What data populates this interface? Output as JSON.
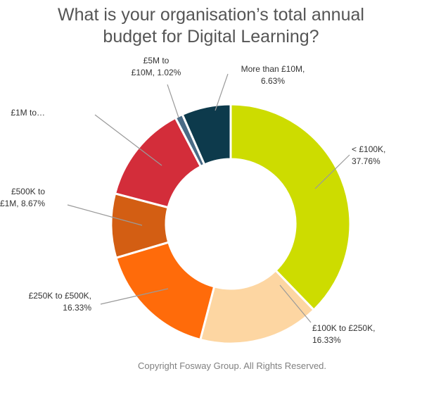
{
  "chart_data": {
    "type": "pie",
    "donut": true,
    "title_lines": [
      "What is your organisation’s total annual",
      "budget for Digital Learning?"
    ],
    "categories": [
      "< £100K",
      "£100K to £250K",
      "£250K to £500K",
      "£500K to £1M",
      "£1M to…",
      "£5M to £10M",
      "More than £10M"
    ],
    "values": [
      37.76,
      16.33,
      16.33,
      8.67,
      13.26,
      1.02,
      6.63
    ],
    "colors": [
      "#cddc00",
      "#fdd6a2",
      "#ff6b0a",
      "#d35e13",
      "#d32d3a",
      "#4a6b86",
      "#0d3a4c"
    ],
    "labels": [
      {
        "lines": [
          "< £100K,",
          "37.76%"
        ]
      },
      {
        "lines": [
          "£100K to £250K,",
          "16.33%"
        ]
      },
      {
        "lines": [
          "£250K to £500K,",
          "16.33%"
        ]
      },
      {
        "lines": [
          "£500K to",
          "£1M, 8.67%"
        ]
      },
      {
        "lines": [
          "£1M to…"
        ]
      },
      {
        "lines": [
          "£5M to",
          "£10M, 1.02%"
        ]
      },
      {
        "lines": [
          "More than £10M,",
          "6.63%"
        ]
      }
    ],
    "legend": "none"
  },
  "footer": "Copyright Fosway Group. All Rights Reserved."
}
